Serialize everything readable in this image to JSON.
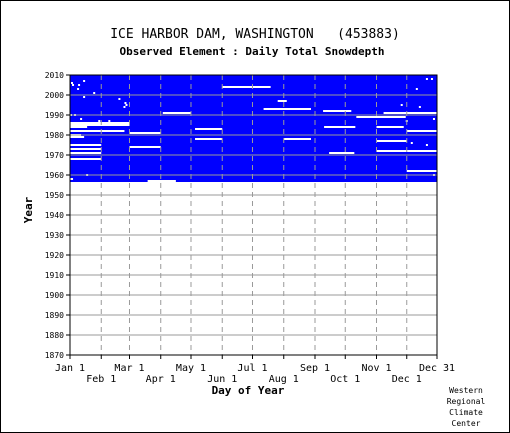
{
  "chart_data": {
    "type": "heatmap",
    "title": "ICE HARBOR DAM, WASHINGTON   (453883)",
    "subtitle": "Observed Element : Daily Total Snowdepth",
    "xlabel": "Day of Year",
    "ylabel": "Year",
    "xlim": [
      1,
      365
    ],
    "ylim": [
      1870,
      2010
    ],
    "record_start_year": 1957,
    "record_end_year": 2010,
    "grid": true,
    "fill_color": "#0000ff",
    "missing_color": "#ffffff",
    "x_ticks_top_row": [
      {
        "label": "Jan 1",
        "day": 1
      },
      {
        "label": "Mar 1",
        "day": 60
      },
      {
        "label": "May 1",
        "day": 121
      },
      {
        "label": "Jul 1",
        "day": 182
      },
      {
        "label": "Sep 1",
        "day": 244
      },
      {
        "label": "Nov 1",
        "day": 305
      },
      {
        "label": "Dec 31",
        "day": 365
      }
    ],
    "x_ticks_bottom_row": [
      {
        "label": "Feb 1",
        "day": 32
      },
      {
        "label": "Apr 1",
        "day": 91
      },
      {
        "label": "Jun 1",
        "day": 152
      },
      {
        "label": "Aug 1",
        "day": 213
      },
      {
        "label": "Oct 1",
        "day": 274
      },
      {
        "label": "Dec 1",
        "day": 335
      }
    ],
    "y_ticks": [
      "1870",
      "1880",
      "1890",
      "1900",
      "1910",
      "1920",
      "1930",
      "1940",
      "1950",
      "1960",
      "1970",
      "1980",
      "1990",
      "2000",
      "2010"
    ],
    "missing_segments": [
      {
        "year": 2004,
        "start_day": 152,
        "end_day": 200
      },
      {
        "year": 1997,
        "start_day": 207,
        "end_day": 216
      },
      {
        "year": 1993,
        "start_day": 193,
        "end_day": 240
      },
      {
        "year": 1992,
        "start_day": 252,
        "end_day": 280
      },
      {
        "year": 1991,
        "start_day": 312,
        "end_day": 365
      },
      {
        "year": 1991,
        "start_day": 93,
        "end_day": 121
      },
      {
        "year": 1989,
        "start_day": 285,
        "end_day": 334
      },
      {
        "year": 1986,
        "start_day": 1,
        "end_day": 60
      },
      {
        "year": 1985,
        "start_day": 1,
        "end_day": 60
      },
      {
        "year": 1984,
        "start_day": 1,
        "end_day": 18
      },
      {
        "year": 1984,
        "start_day": 253,
        "end_day": 284
      },
      {
        "year": 1984,
        "start_day": 305,
        "end_day": 332
      },
      {
        "year": 1983,
        "start_day": 125,
        "end_day": 152
      },
      {
        "year": 1982,
        "start_day": 1,
        "end_day": 55
      },
      {
        "year": 1982,
        "start_day": 335,
        "end_day": 365
      },
      {
        "year": 1981,
        "start_day": 60,
        "end_day": 91
      },
      {
        "year": 1980,
        "start_day": 1,
        "end_day": 12
      },
      {
        "year": 1979,
        "start_day": 1,
        "end_day": 15
      },
      {
        "year": 1978,
        "start_day": 125,
        "end_day": 152
      },
      {
        "year": 1978,
        "start_day": 213,
        "end_day": 240
      },
      {
        "year": 1977,
        "start_day": 305,
        "end_day": 335
      },
      {
        "year": 1975,
        "start_day": 1,
        "end_day": 32
      },
      {
        "year": 1974,
        "start_day": 60,
        "end_day": 91
      },
      {
        "year": 1973,
        "start_day": 1,
        "end_day": 32
      },
      {
        "year": 1972,
        "start_day": 305,
        "end_day": 335
      },
      {
        "year": 1972,
        "start_day": 335,
        "end_day": 365
      },
      {
        "year": 1971,
        "start_day": 1,
        "end_day": 32
      },
      {
        "year": 1971,
        "start_day": 258,
        "end_day": 283
      },
      {
        "year": 1968,
        "start_day": 1,
        "end_day": 32
      },
      {
        "year": 1962,
        "start_day": 335,
        "end_day": 365
      },
      {
        "year": 1958,
        "start_day": 1,
        "end_day": 4
      },
      {
        "year": 1957,
        "start_day": 78,
        "end_day": 106
      }
    ],
    "missing_points": [
      {
        "year": 2007,
        "day": 15
      },
      {
        "year": 2006,
        "day": 3
      },
      {
        "year": 2005,
        "day": 10
      },
      {
        "year": 2005,
        "day": 4
      },
      {
        "year": 2003,
        "day": 9
      },
      {
        "year": 2001,
        "day": 25
      },
      {
        "year": 1999,
        "day": 15
      },
      {
        "year": 1998,
        "day": 50
      },
      {
        "year": 1996,
        "day": 56
      },
      {
        "year": 1995,
        "day": 57
      },
      {
        "year": 1995,
        "day": 330
      },
      {
        "year": 1994,
        "day": 55
      },
      {
        "year": 1990,
        "day": 2
      },
      {
        "year": 1990,
        "day": 6
      },
      {
        "year": 1988,
        "day": 12
      },
      {
        "year": 1987,
        "day": 30
      },
      {
        "year": 1987,
        "day": 40
      },
      {
        "year": 1979,
        "day": 7
      },
      {
        "year": 1976,
        "day": 340
      },
      {
        "year": 1960,
        "day": 18
      },
      {
        "year": 2008,
        "day": 355
      },
      {
        "year": 2008,
        "day": 360
      },
      {
        "year": 2003,
        "day": 345
      },
      {
        "year": 1994,
        "day": 348
      },
      {
        "year": 1988,
        "day": 362
      },
      {
        "year": 1987,
        "day": 335
      },
      {
        "year": 1975,
        "day": 355
      },
      {
        "year": 1960,
        "day": 362
      }
    ]
  },
  "credit": {
    "lines": [
      "Western",
      "Regional",
      "Climate",
      "Center"
    ]
  }
}
